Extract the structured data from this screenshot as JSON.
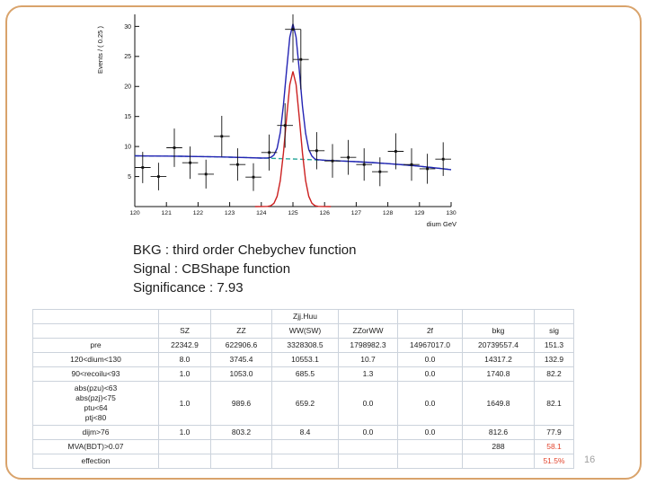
{
  "slide": {
    "page_number": "16"
  },
  "colors": {
    "accent": "#e2452e",
    "frame": "#d9a36b"
  },
  "notes": {
    "bkg": "BKG : third order Chebychev function",
    "signal": "Signal : CBShape function",
    "significance": "Significance : 7.93"
  },
  "chart_data": {
    "type": "line",
    "title": "",
    "xlabel": "dium GeV",
    "ylabel": "Events / ( 0.25 )",
    "xlim": [
      120,
      130
    ],
    "ylim": [
      0,
      32
    ],
    "xticks": [
      120,
      121,
      122,
      123,
      124,
      125,
      126,
      127,
      128,
      129,
      130
    ],
    "yticks": [
      5,
      10,
      15,
      20,
      25,
      30
    ],
    "x_err": 0.25,
    "series": [
      {
        "name": "background-chebychev",
        "color": "#2aa79b",
        "dash": true,
        "x": [
          120,
          120.5,
          121,
          121.5,
          122,
          122.5,
          123,
          123.5,
          124,
          124.5,
          125,
          125.5,
          126,
          126.5,
          127,
          127.5,
          128,
          128.5,
          129,
          129.5,
          130
        ],
        "y": [
          8.45,
          8.42,
          8.4,
          8.37,
          8.33,
          8.28,
          8.22,
          8.16,
          8.08,
          8.0,
          7.92,
          7.82,
          7.72,
          7.6,
          7.47,
          7.32,
          7.15,
          6.95,
          6.72,
          6.45,
          6.15
        ]
      },
      {
        "name": "signal-cbshape",
        "color": "#cc2020",
        "dash": false,
        "x": [
          123.8,
          124.0,
          124.2,
          124.3,
          124.4,
          124.5,
          124.6,
          124.7,
          124.8,
          124.9,
          125.0,
          125.1,
          125.2,
          125.3,
          125.4,
          125.5,
          125.6,
          125.7,
          125.8,
          126.0,
          126.2
        ],
        "y": [
          0,
          0.01,
          0.03,
          0.14,
          0.55,
          1.7,
          4.3,
          8.9,
          14.9,
          20.3,
          22.5,
          20.3,
          14.9,
          8.9,
          4.3,
          1.7,
          0.55,
          0.14,
          0.03,
          0.01,
          0
        ]
      },
      {
        "name": "total-fit",
        "color": "#2424b4",
        "dash": false,
        "x": [
          120,
          120.5,
          121,
          121.5,
          122,
          122.5,
          123,
          123.5,
          124,
          124.2,
          124.3,
          124.4,
          124.5,
          124.6,
          124.7,
          124.8,
          124.9,
          125.0,
          125.1,
          125.2,
          125.3,
          125.4,
          125.5,
          125.6,
          125.7,
          125.8,
          126,
          126.5,
          127,
          127.5,
          128,
          128.5,
          129,
          129.5,
          130
        ],
        "y": [
          8.45,
          8.42,
          8.4,
          8.37,
          8.33,
          8.28,
          8.22,
          8.16,
          8.08,
          8.1,
          8.2,
          8.6,
          9.7,
          12.3,
          16.9,
          22.8,
          28.2,
          30.4,
          28.2,
          22.8,
          16.7,
          12.2,
          9.5,
          8.4,
          7.9,
          7.8,
          7.72,
          7.6,
          7.47,
          7.32,
          7.15,
          6.95,
          6.72,
          6.45,
          6.15
        ]
      }
    ],
    "points": [
      {
        "x": 120.25,
        "y": 6.5,
        "ey": 2.6
      },
      {
        "x": 120.75,
        "y": 5.0,
        "ey": 2.3
      },
      {
        "x": 121.25,
        "y": 9.8,
        "ey": 3.2
      },
      {
        "x": 121.75,
        "y": 7.3,
        "ey": 2.7
      },
      {
        "x": 122.25,
        "y": 5.4,
        "ey": 2.4
      },
      {
        "x": 122.75,
        "y": 11.7,
        "ey": 3.4
      },
      {
        "x": 123.25,
        "y": 7.0,
        "ey": 2.7
      },
      {
        "x": 123.75,
        "y": 4.9,
        "ey": 2.3
      },
      {
        "x": 124.25,
        "y": 9.0,
        "ey": 3.0
      },
      {
        "x": 124.75,
        "y": 13.5,
        "ey": 3.7
      },
      {
        "x": 125.0,
        "y": 29.5,
        "ey": 5.5
      },
      {
        "x": 125.25,
        "y": 24.5,
        "ey": 5.0
      },
      {
        "x": 125.75,
        "y": 9.3,
        "ey": 3.1
      },
      {
        "x": 126.25,
        "y": 7.6,
        "ey": 2.8
      },
      {
        "x": 126.75,
        "y": 8.2,
        "ey": 2.9
      },
      {
        "x": 127.25,
        "y": 7.0,
        "ey": 2.7
      },
      {
        "x": 127.75,
        "y": 5.8,
        "ey": 2.4
      },
      {
        "x": 128.25,
        "y": 9.2,
        "ey": 3.0
      },
      {
        "x": 128.75,
        "y": 7.0,
        "ey": 2.7
      },
      {
        "x": 129.25,
        "y": 6.3,
        "ey": 2.5
      },
      {
        "x": 129.75,
        "y": 7.9,
        "ey": 2.8
      }
    ]
  },
  "table": {
    "header_rows": [
      [
        "",
        "",
        "",
        "Zjj.Huu",
        "",
        "",
        "",
        ""
      ],
      [
        "",
        "SZ",
        "ZZ",
        "WW(SW)",
        "ZZorWW",
        "2f",
        "bkg",
        "sig"
      ]
    ],
    "rows": [
      {
        "label": [
          "pre"
        ],
        "values": [
          "22342.9",
          "622906.6",
          "3328308.5",
          "1798982.3",
          "14967017.0",
          "20739557.4",
          "151.3"
        ]
      },
      {
        "label": [
          "120<dium<130"
        ],
        "values": [
          "8.0",
          "3745.4",
          "10553.1",
          "10.7",
          "0.0",
          "14317.2",
          "132.9"
        ]
      },
      {
        "label": [
          "90<recoilu<93"
        ],
        "values": [
          "1.0",
          "1053.0",
          "685.5",
          "1.3",
          "0.0",
          "1740.8",
          "82.2"
        ]
      },
      {
        "label": [
          "abs(pzu)<63",
          "abs(pzj)<75",
          "ptu<64",
          "ptj<80"
        ],
        "values": [
          "1.0",
          "989.6",
          "659.2",
          "0.0",
          "0.0",
          "1649.8",
          "82.1"
        ]
      },
      {
        "label": [
          "dijm>76"
        ],
        "values": [
          "1.0",
          "803.2",
          "8.4",
          "0.0",
          "0.0",
          "812.6",
          "77.9"
        ]
      },
      {
        "label": [
          "MVA(BDT)>0.07"
        ],
        "values": [
          "",
          "",
          "",
          "",
          "",
          "288",
          "58.1"
        ],
        "accent": [
          6
        ]
      },
      {
        "label": [
          "effection"
        ],
        "values": [
          "",
          "",
          "",
          "",
          "",
          "",
          "51.5%"
        ],
        "accent": [
          6
        ]
      }
    ]
  }
}
